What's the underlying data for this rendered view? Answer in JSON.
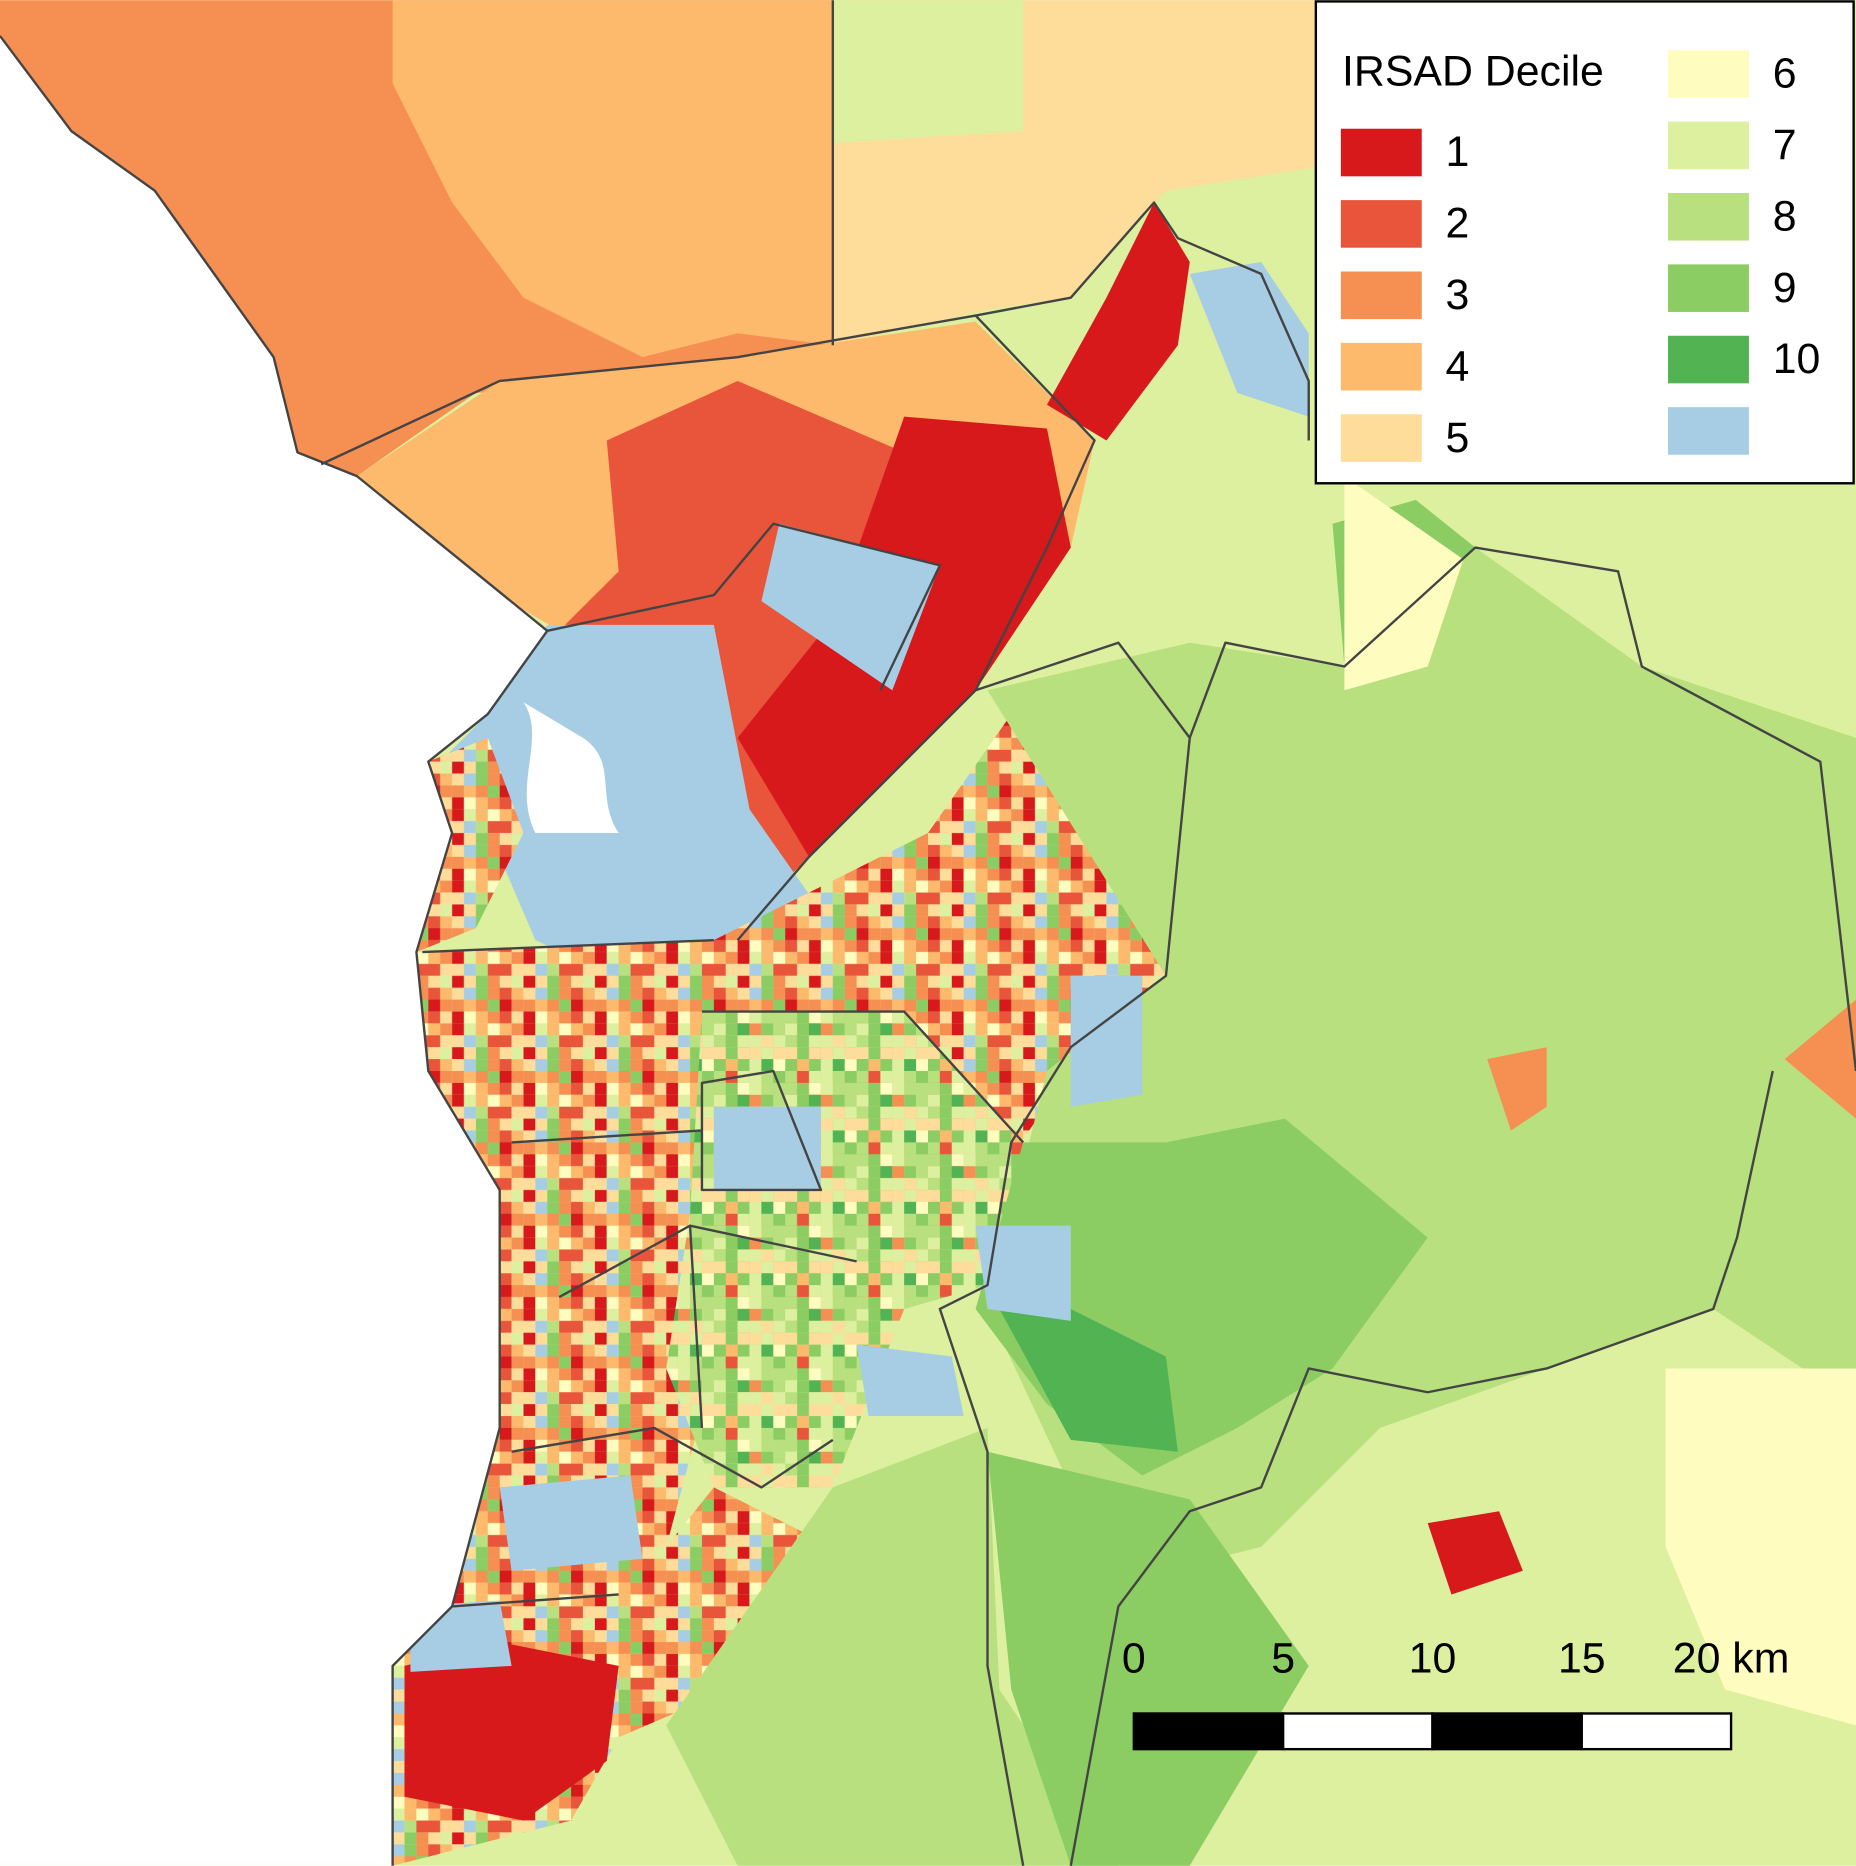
{
  "map": {
    "legend": {
      "title": "IRSAD Decile",
      "items": [
        {
          "label": "1",
          "color": "#d7191c"
        },
        {
          "label": "2",
          "color": "#e8553a"
        },
        {
          "label": "3",
          "color": "#f58f52"
        },
        {
          "label": "4",
          "color": "#fdb96c"
        },
        {
          "label": "5",
          "color": "#fedc9a"
        },
        {
          "label": "6",
          "color": "#fefcbf"
        },
        {
          "label": "7",
          "color": "#dcf0a0"
        },
        {
          "label": "8",
          "color": "#b8e07e"
        },
        {
          "label": "9",
          "color": "#8ccd63"
        },
        {
          "label": "10",
          "color": "#52b352"
        },
        {
          "color": "#a6cde3"
        }
      ]
    },
    "scale_bar": {
      "ticks": [
        0,
        5,
        10,
        15,
        {
          "value": 20,
          "label": "20 km"
        }
      ]
    }
  }
}
